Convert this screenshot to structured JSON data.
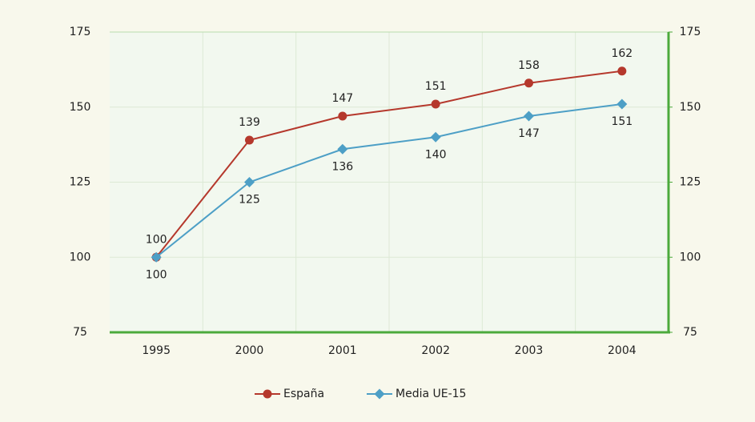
{
  "chart_data": {
    "type": "line",
    "categories": [
      "1995",
      "2000",
      "2001",
      "2002",
      "2003",
      "2004"
    ],
    "series": [
      {
        "name": "España",
        "color": "#b5382c",
        "marker": "circle",
        "values": [
          100,
          139,
          147,
          151,
          158,
          162
        ]
      },
      {
        "name": "Media UE-15",
        "color": "#4d9fc6",
        "marker": "diamond",
        "values": [
          100,
          125,
          136,
          140,
          147,
          151
        ]
      }
    ],
    "ylim": [
      75,
      175
    ],
    "yticks": [
      75,
      100,
      125,
      150,
      175
    ],
    "y2lim": [
      75,
      175
    ],
    "y2ticks": [
      75,
      100,
      125,
      150,
      175
    ],
    "grid": true,
    "legend": "bottom"
  }
}
